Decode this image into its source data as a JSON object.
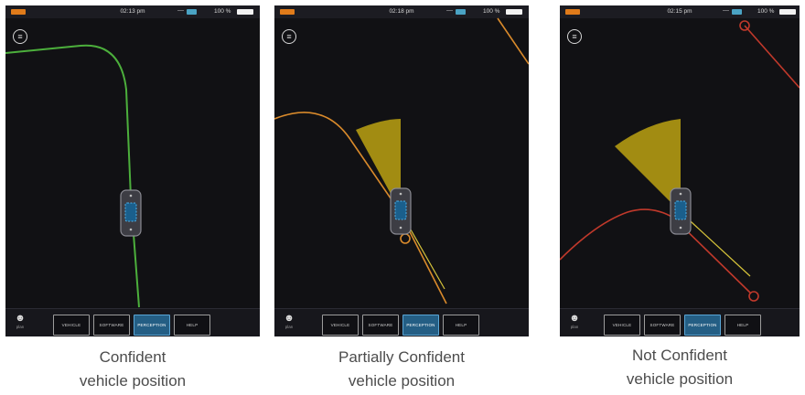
{
  "panels": [
    {
      "time": "02:13 pm",
      "battery": "100 %",
      "caption_line1": "Confident",
      "caption_line2": "vehicle position"
    },
    {
      "time": "02:18 pm",
      "battery": "100 %",
      "caption_line1": "Partially Confident",
      "caption_line2": "vehicle position"
    },
    {
      "time": "02:15 pm",
      "battery": "100 %",
      "caption_line1": "Not Confident",
      "caption_line2": "vehicle position"
    }
  ],
  "status": {
    "dash": "—"
  },
  "nav": {
    "user_label": "plan",
    "vehicle": "VEHICLE",
    "software": "SOFTWARE",
    "perception": "PERCEPTION",
    "help": "HELP"
  },
  "icons": {
    "menu": "hamburger-menu-icon",
    "user": "user-icon",
    "car": "vehicle-icon"
  },
  "colors": {
    "confident_path": "#4caf3c",
    "partial_path": "#d98a2b",
    "not_confident_path": "#c0392b",
    "perception_cone": "#b39a12",
    "active_tab": "#245e84",
    "screen_bg": "#111114"
  }
}
